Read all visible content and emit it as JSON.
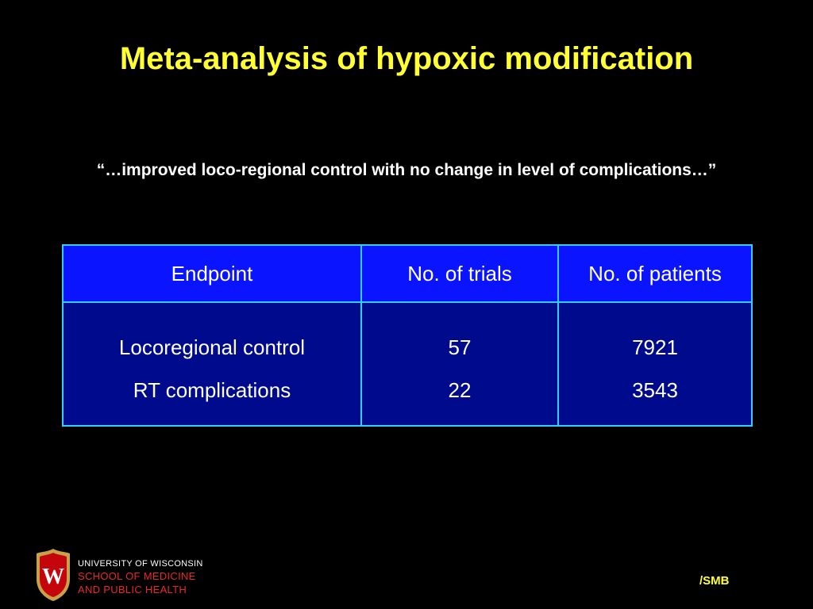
{
  "slide": {
    "title": "Meta-analysis of hypoxic modification",
    "quote": "“…improved loco-regional control with no change in level of complications…”"
  },
  "table": {
    "headers": [
      "Endpoint",
      "No. of trials",
      "No. of patients"
    ],
    "rows": [
      [
        "Locoregional control",
        "57",
        "7921"
      ],
      [
        "RT complications",
        "22",
        "3543"
      ]
    ]
  },
  "footer": {
    "institution_line1": "UNIVERSITY OF WISCONSIN",
    "institution_line2": "SCHOOL OF MEDICINE",
    "institution_line3": "AND PUBLIC HEALTH",
    "credit": "/SMB",
    "crest_icon": "uw-crest-icon"
  },
  "colors": {
    "background": "#000000",
    "title": "#ffff33",
    "table_header_bg": "#0a14ff",
    "table_body_bg": "#000a8c",
    "table_border": "#33ccff",
    "institution_red": "#e8282a"
  }
}
